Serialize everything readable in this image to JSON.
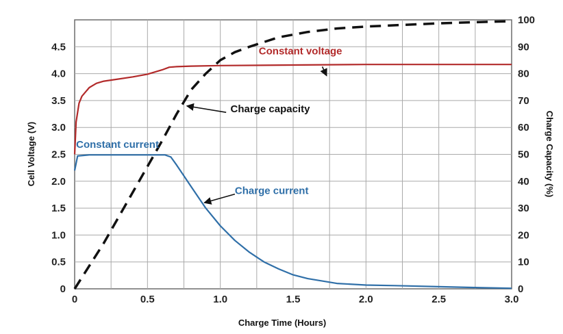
{
  "chart_data": {
    "type": "line",
    "title": "",
    "xlabel": "Charge Time (Hours)",
    "ylabel_left": "Cell Voltage (V)",
    "ylabel_right": "Charge Capacity (%)",
    "xlim": [
      0,
      3.0
    ],
    "ylim_left": [
      0,
      5.0
    ],
    "ylim_right": [
      0,
      100
    ],
    "grid": true,
    "x_ticks": [
      {
        "v": 0,
        "label": "0"
      },
      {
        "v": 0.5,
        "label": "0.5"
      },
      {
        "v": 1.0,
        "label": "1.0"
      },
      {
        "v": 1.5,
        "label": "1.5"
      },
      {
        "v": 2.0,
        "label": "2.0"
      },
      {
        "v": 2.5,
        "label": "2.5"
      },
      {
        "v": 3.0,
        "label": "3.0"
      }
    ],
    "y_left_ticks": [
      {
        "v": 0,
        "label": "0"
      },
      {
        "v": 0.5,
        "label": "0.5"
      },
      {
        "v": 1.0,
        "label": "1.0"
      },
      {
        "v": 1.5,
        "label": "1.5"
      },
      {
        "v": 2.0,
        "label": "2.0"
      },
      {
        "v": 2.5,
        "label": "2.5"
      },
      {
        "v": 3.0,
        "label": "3.0"
      },
      {
        "v": 3.5,
        "label": "3.5"
      },
      {
        "v": 4.0,
        "label": "4.0"
      },
      {
        "v": 4.5,
        "label": "4.5"
      }
    ],
    "y_right_ticks": [
      {
        "v": 0,
        "label": "0"
      },
      {
        "v": 10,
        "label": "10"
      },
      {
        "v": 20,
        "label": "20"
      },
      {
        "v": 30,
        "label": "30"
      },
      {
        "v": 40,
        "label": "40"
      },
      {
        "v": 50,
        "label": "50"
      },
      {
        "v": 60,
        "label": "60"
      },
      {
        "v": 70,
        "label": "70"
      },
      {
        "v": 80,
        "label": "80"
      },
      {
        "v": 90,
        "label": "90"
      },
      {
        "v": 100,
        "label": "100"
      }
    ],
    "series": [
      {
        "key": "voltage",
        "axis": "left",
        "color": "#b22a2a",
        "style": "solid",
        "x": [
          0,
          0.01,
          0.03,
          0.05,
          0.1,
          0.15,
          0.2,
          0.3,
          0.4,
          0.5,
          0.6,
          0.65,
          0.7,
          0.8,
          1.0,
          1.5,
          2.0,
          2.5,
          3.0
        ],
        "y": [
          2.5,
          3.1,
          3.45,
          3.58,
          3.74,
          3.82,
          3.86,
          3.9,
          3.94,
          3.99,
          4.07,
          4.12,
          4.13,
          4.14,
          4.15,
          4.16,
          4.17,
          4.17,
          4.17
        ]
      },
      {
        "key": "current",
        "axis": "left",
        "color": "#2f6fa8",
        "style": "solid",
        "x": [
          0,
          0.02,
          0.1,
          0.3,
          0.5,
          0.62,
          0.66,
          0.7,
          0.8,
          0.9,
          1.0,
          1.1,
          1.2,
          1.3,
          1.4,
          1.5,
          1.6,
          1.8,
          2.0,
          2.2,
          2.5,
          2.8,
          3.0
        ],
        "y": [
          2.2,
          2.47,
          2.49,
          2.49,
          2.49,
          2.49,
          2.45,
          2.3,
          1.9,
          1.5,
          1.17,
          0.9,
          0.68,
          0.5,
          0.37,
          0.26,
          0.19,
          0.1,
          0.07,
          0.06,
          0.04,
          0.02,
          0.01
        ]
      },
      {
        "key": "capacity",
        "axis": "right",
        "color": "#111111",
        "style": "dashed",
        "x": [
          0,
          0.2,
          0.4,
          0.6,
          0.7,
          0.8,
          0.9,
          1.0,
          1.1,
          1.2,
          1.4,
          1.6,
          1.8,
          2.0,
          2.2,
          2.5,
          2.8,
          3.0
        ],
        "y": [
          0,
          17,
          36,
          55,
          65,
          74,
          80,
          85,
          88,
          90,
          93.5,
          95.5,
          96.8,
          97.5,
          98,
          98.7,
          99.2,
          99.5
        ]
      }
    ],
    "annotations": [
      {
        "text": "Constant voltage",
        "color": "#b22a2a",
        "x": 1.55,
        "y": 4.36,
        "anchor": "middle",
        "arrow_from": [
          1.7,
          4.13
        ],
        "arrow_to": [
          1.73,
          3.96
        ]
      },
      {
        "text": "Charge capacity",
        "color": "#111111",
        "x": 1.07,
        "y": 3.28,
        "anchor": "start",
        "arrow_from": [
          1.04,
          3.28
        ],
        "arrow_to": [
          0.77,
          3.4
        ]
      },
      {
        "text": "Constant current",
        "color": "#2f6fa8",
        "x": 0.01,
        "y": 2.62,
        "anchor": "start"
      },
      {
        "text": "Charge current",
        "color": "#2f6fa8",
        "x": 1.1,
        "y": 1.76,
        "anchor": "start",
        "arrow_from": [
          1.1,
          1.76
        ],
        "arrow_to": [
          0.89,
          1.6
        ]
      }
    ]
  }
}
